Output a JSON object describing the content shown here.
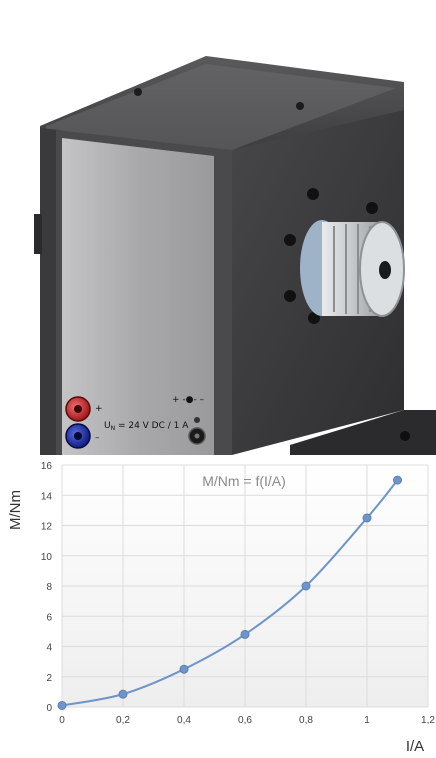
{
  "device": {
    "rating_prefix": "U",
    "rating_subscript": "N",
    "rating_text": " = 24 V DC / 1 A",
    "plus_symbol": "+",
    "minus_symbol": "–",
    "socket_polarity": "+ -●- –",
    "colors": {
      "red_jack": "#c0282a",
      "blue_jack": "#1c2fa8",
      "panel": "#a3a3a6",
      "housing": "#3b3b3e"
    }
  },
  "chart_data": {
    "type": "line",
    "title": "M/Nm = f(I/A)",
    "xlabel": "I/A",
    "ylabel": "M/Nm",
    "xlim": [
      0,
      1.2
    ],
    "ylim": [
      0,
      16
    ],
    "xticks": [
      "0",
      "0,2",
      "0,4",
      "0,6",
      "0,8",
      "1",
      "1,2"
    ],
    "yticks": [
      "0",
      "2",
      "4",
      "6",
      "8",
      "10",
      "12",
      "14",
      "16"
    ],
    "grid": true,
    "series": [
      {
        "x": [
          0,
          0.2,
          0.4,
          0.6,
          0.8,
          1.0,
          1.1
        ],
        "y": [
          0.1,
          0.85,
          2.5,
          4.8,
          8.0,
          12.5,
          15.0
        ],
        "color": "#6f95c8"
      }
    ]
  }
}
